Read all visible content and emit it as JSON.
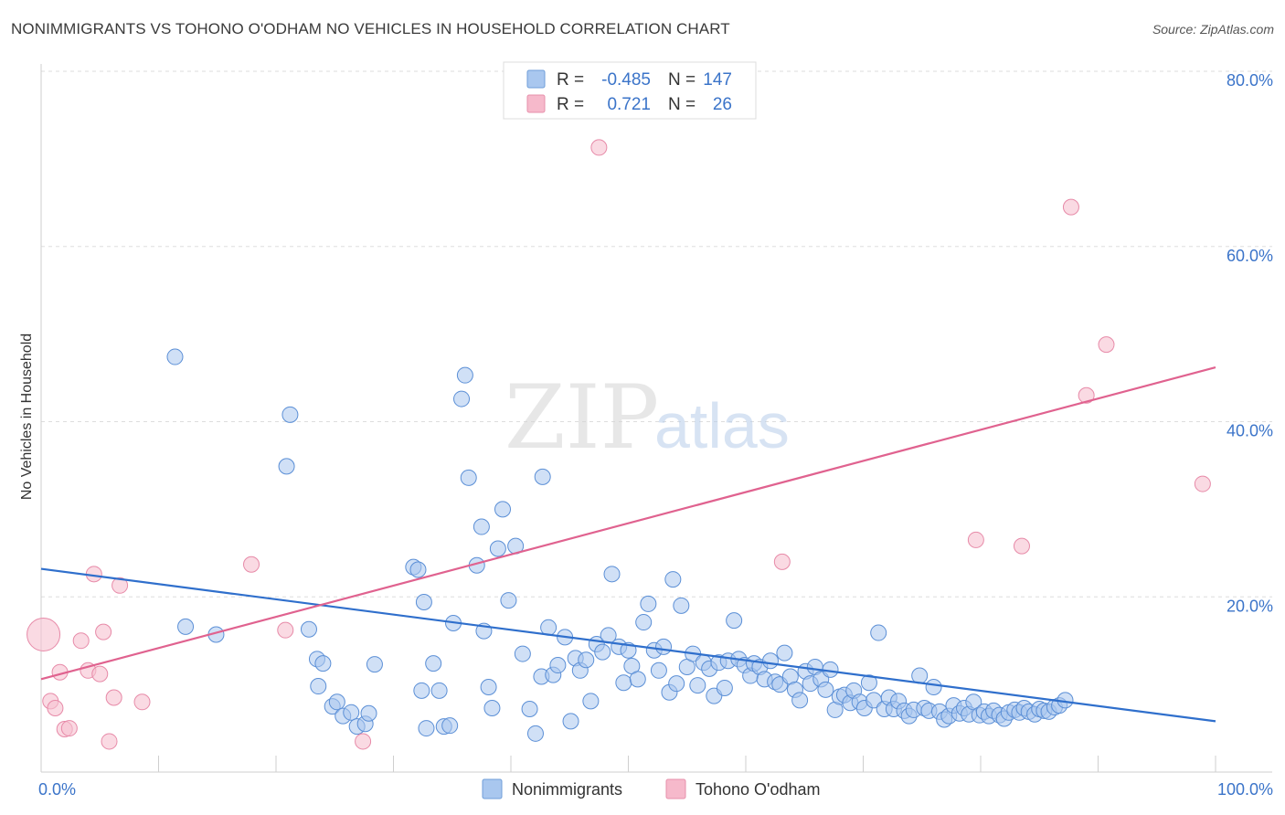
{
  "title": "NONIMMIGRANTS VS TOHONO O'ODHAM NO VEHICLES IN HOUSEHOLD CORRELATION CHART",
  "source": "Source: ZipAtlas.com",
  "watermark": {
    "zip": "ZIP",
    "atlas": "atlas"
  },
  "legend_stats": [
    {
      "name": "Nonimmigrants",
      "r_label": "R =",
      "r_value": "-0.485",
      "n_label": "N =",
      "n_value": "147",
      "color": "#a9c7ef",
      "stroke": "#6f9ed8"
    },
    {
      "name": "Tohono O'odham",
      "r_label": "R =",
      "r_value": "0.721",
      "n_label": "N =",
      "n_value": "26",
      "color": "#f6b9cb",
      "stroke": "#e790ab"
    }
  ],
  "colors": {
    "blue_fill": "#a9c7ef",
    "blue_stroke": "#5b8fd6",
    "blue_line": "#2f6fcc",
    "pink_fill": "#f6c1d1",
    "pink_stroke": "#e78aa8",
    "pink_line": "#e0628f",
    "tick_blue": "#3b74c9",
    "grid": "#dddddd"
  },
  "chart_data": {
    "type": "scatter",
    "title": "NONIMMIGRANTS VS TOHONO O'ODHAM NO VEHICLES IN HOUSEHOLD CORRELATION CHART",
    "xlabel": "",
    "ylabel": "No Vehicles in Household",
    "x_tick_labels": [
      "0.0%",
      "100.0%"
    ],
    "y_tick_labels": [
      "20.0%",
      "40.0%",
      "60.0%",
      "80.0%"
    ],
    "xlim": [
      0,
      100
    ],
    "ylim": [
      0,
      80
    ],
    "grid": true,
    "legend_position": "top-center",
    "series": [
      {
        "name": "Nonimmigrants",
        "points": [
          [
            11.4,
            47.4
          ],
          [
            12.3,
            16.6
          ],
          [
            14.9,
            15.7
          ],
          [
            20.9,
            34.9
          ],
          [
            21.2,
            40.8
          ],
          [
            22.8,
            16.3
          ],
          [
            23.5,
            12.9
          ],
          [
            23.6,
            9.8
          ],
          [
            24.0,
            12.4
          ],
          [
            24.8,
            7.5
          ],
          [
            25.2,
            8.0
          ],
          [
            25.7,
            6.4
          ],
          [
            26.4,
            6.8
          ],
          [
            26.9,
            5.2
          ],
          [
            27.6,
            5.5
          ],
          [
            27.9,
            6.7
          ],
          [
            28.4,
            12.3
          ],
          [
            31.7,
            23.4
          ],
          [
            32.1,
            23.1
          ],
          [
            32.6,
            19.4
          ],
          [
            32.4,
            9.3
          ],
          [
            32.8,
            5.0
          ],
          [
            33.4,
            12.4
          ],
          [
            33.9,
            9.3
          ],
          [
            34.3,
            5.2
          ],
          [
            34.8,
            5.3
          ],
          [
            35.1,
            17.0
          ],
          [
            35.8,
            42.6
          ],
          [
            36.1,
            45.3
          ],
          [
            36.4,
            33.6
          ],
          [
            37.1,
            23.6
          ],
          [
            37.5,
            28.0
          ],
          [
            37.7,
            16.1
          ],
          [
            38.1,
            9.7
          ],
          [
            38.4,
            7.3
          ],
          [
            38.9,
            25.5
          ],
          [
            39.3,
            30.0
          ],
          [
            39.8,
            19.6
          ],
          [
            40.4,
            25.8
          ],
          [
            41.0,
            13.5
          ],
          [
            41.6,
            7.2
          ],
          [
            42.1,
            4.4
          ],
          [
            42.6,
            10.9
          ],
          [
            42.7,
            33.7
          ],
          [
            43.2,
            16.5
          ],
          [
            43.6,
            11.1
          ],
          [
            44.0,
            12.2
          ],
          [
            44.6,
            15.4
          ],
          [
            45.1,
            5.8
          ],
          [
            45.5,
            13.0
          ],
          [
            45.9,
            11.6
          ],
          [
            46.4,
            12.8
          ],
          [
            46.8,
            8.1
          ],
          [
            47.3,
            14.6
          ],
          [
            47.8,
            13.7
          ],
          [
            48.3,
            15.6
          ],
          [
            48.6,
            22.6
          ],
          [
            49.2,
            14.3
          ],
          [
            49.6,
            10.2
          ],
          [
            50.0,
            13.9
          ],
          [
            50.3,
            12.1
          ],
          [
            50.8,
            10.6
          ],
          [
            51.3,
            17.1
          ],
          [
            51.7,
            19.2
          ],
          [
            52.2,
            13.9
          ],
          [
            52.6,
            11.6
          ],
          [
            53.0,
            14.3
          ],
          [
            53.5,
            9.1
          ],
          [
            53.8,
            22.0
          ],
          [
            54.1,
            10.1
          ],
          [
            54.5,
            19.0
          ],
          [
            55.0,
            12.0
          ],
          [
            55.5,
            13.5
          ],
          [
            55.9,
            9.9
          ],
          [
            56.4,
            12.5
          ],
          [
            56.9,
            11.8
          ],
          [
            57.3,
            8.7
          ],
          [
            57.7,
            12.5
          ],
          [
            58.2,
            9.6
          ],
          [
            58.5,
            12.7
          ],
          [
            59.0,
            17.3
          ],
          [
            59.4,
            12.9
          ],
          [
            59.9,
            12.2
          ],
          [
            60.4,
            11.0
          ],
          [
            60.7,
            12.4
          ],
          [
            61.2,
            12.0
          ],
          [
            61.6,
            10.6
          ],
          [
            62.1,
            12.7
          ],
          [
            62.5,
            10.3
          ],
          [
            62.9,
            10.0
          ],
          [
            63.3,
            13.6
          ],
          [
            63.8,
            10.9
          ],
          [
            64.2,
            9.4
          ],
          [
            64.6,
            8.2
          ],
          [
            65.1,
            11.5
          ],
          [
            65.5,
            10.1
          ],
          [
            65.9,
            12.0
          ],
          [
            66.4,
            10.6
          ],
          [
            66.8,
            9.4
          ],
          [
            67.2,
            11.7
          ],
          [
            67.6,
            7.1
          ],
          [
            68.0,
            8.6
          ],
          [
            68.4,
            8.8
          ],
          [
            68.9,
            7.9
          ],
          [
            69.2,
            9.3
          ],
          [
            69.7,
            8.0
          ],
          [
            70.1,
            7.3
          ],
          [
            70.5,
            10.2
          ],
          [
            70.9,
            8.2
          ],
          [
            71.3,
            15.9
          ],
          [
            71.8,
            7.2
          ],
          [
            72.2,
            8.5
          ],
          [
            72.6,
            7.2
          ],
          [
            73.0,
            8.1
          ],
          [
            73.5,
            7.0
          ],
          [
            73.9,
            6.4
          ],
          [
            74.3,
            7.1
          ],
          [
            74.8,
            11.0
          ],
          [
            75.2,
            7.3
          ],
          [
            75.6,
            7.0
          ],
          [
            76.0,
            9.7
          ],
          [
            76.5,
            6.9
          ],
          [
            76.9,
            6.0
          ],
          [
            77.3,
            6.4
          ],
          [
            77.7,
            7.6
          ],
          [
            78.2,
            6.7
          ],
          [
            78.6,
            7.3
          ],
          [
            79.0,
            6.6
          ],
          [
            79.4,
            8.0
          ],
          [
            79.9,
            6.5
          ],
          [
            80.3,
            6.9
          ],
          [
            80.7,
            6.4
          ],
          [
            81.1,
            7.0
          ],
          [
            81.6,
            6.5
          ],
          [
            82.0,
            6.1
          ],
          [
            82.4,
            6.8
          ],
          [
            82.9,
            7.1
          ],
          [
            83.3,
            6.8
          ],
          [
            83.7,
            7.3
          ],
          [
            84.1,
            6.9
          ],
          [
            84.6,
            6.6
          ],
          [
            85.0,
            7.2
          ],
          [
            85.4,
            7.0
          ],
          [
            85.8,
            6.9
          ],
          [
            86.3,
            7.4
          ],
          [
            86.7,
            7.6
          ],
          [
            87.2,
            8.2
          ]
        ]
      },
      {
        "name": "Tohono O'odham",
        "points": [
          [
            0.2,
            15.7
          ],
          [
            0.8,
            8.1
          ],
          [
            1.2,
            7.3
          ],
          [
            1.6,
            11.4
          ],
          [
            2.0,
            4.9
          ],
          [
            2.4,
            5.0
          ],
          [
            3.4,
            15.0
          ],
          [
            4.0,
            11.6
          ],
          [
            4.5,
            22.6
          ],
          [
            5.0,
            11.2
          ],
          [
            5.3,
            16.0
          ],
          [
            5.8,
            3.5
          ],
          [
            6.2,
            8.5
          ],
          [
            6.7,
            21.3
          ],
          [
            8.6,
            8.0
          ],
          [
            17.9,
            23.7
          ],
          [
            20.8,
            16.2
          ],
          [
            27.4,
            3.5
          ],
          [
            47.5,
            71.3
          ],
          [
            63.1,
            24.0
          ],
          [
            79.6,
            26.5
          ],
          [
            83.5,
            25.8
          ],
          [
            87.7,
            64.5
          ],
          [
            89.0,
            43.0
          ],
          [
            90.7,
            48.8
          ],
          [
            98.9,
            32.9
          ]
        ]
      }
    ],
    "trendlines": [
      {
        "name": "Nonimmigrants",
        "x": [
          0,
          100
        ],
        "y": [
          23.2,
          5.8
        ]
      },
      {
        "name": "Tohono O'odham",
        "x": [
          0,
          100
        ],
        "y": [
          10.6,
          46.2
        ]
      }
    ]
  }
}
